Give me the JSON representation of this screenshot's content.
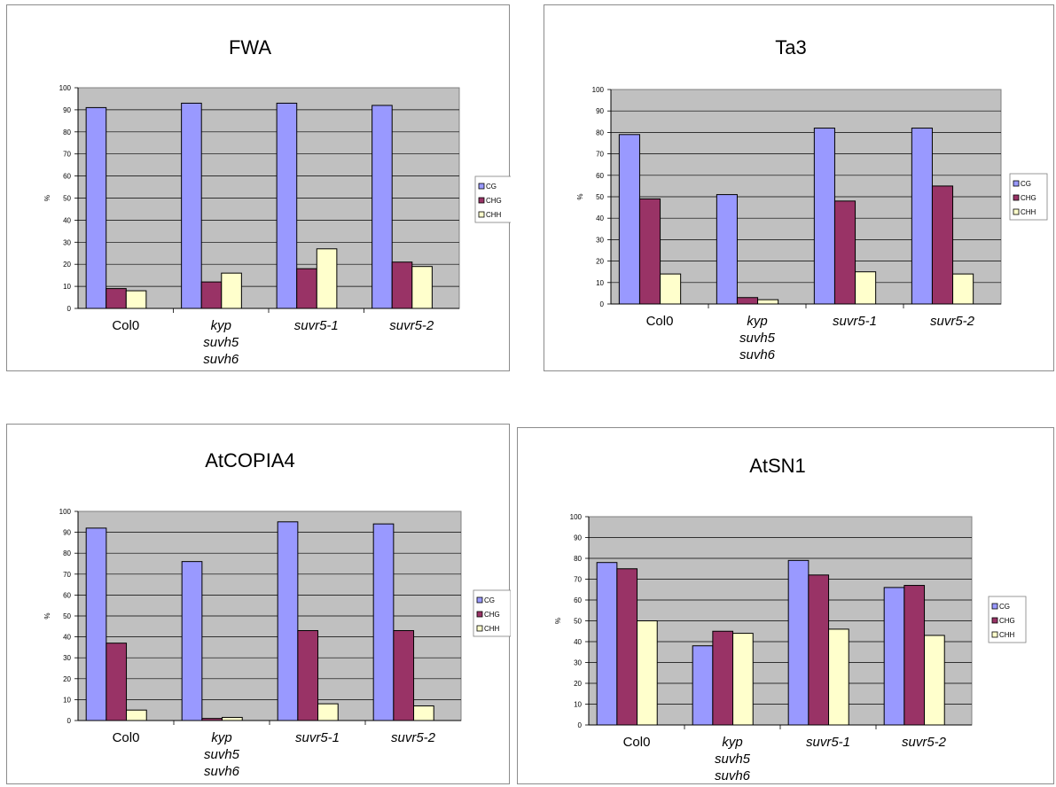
{
  "chart_data": [
    {
      "type": "bar",
      "title": "FWA",
      "ylabel": "%",
      "ylim": [
        0,
        100
      ],
      "yticks": [
        "0",
        "10",
        "20",
        "30",
        "40",
        "50",
        "60",
        "70",
        "80",
        "90",
        "100"
      ],
      "categories": [
        [
          "Col0"
        ],
        [
          "kyp",
          "suvh5",
          "suvh6"
        ],
        [
          "suvr5-1"
        ],
        [
          "suvr5-2"
        ]
      ],
      "category_italic": [
        false,
        true,
        true,
        true
      ],
      "series": [
        {
          "name": "CG",
          "color": "#9999ff",
          "values": [
            91,
            93,
            93,
            92
          ]
        },
        {
          "name": "CHG",
          "color": "#993366",
          "values": [
            9,
            12,
            18,
            21
          ]
        },
        {
          "name": "CHH",
          "color": "#ffffcc",
          "values": [
            8,
            16,
            27,
            19
          ]
        }
      ],
      "grid": true,
      "legend": "right"
    },
    {
      "type": "bar",
      "title": "Ta3",
      "ylabel": "%",
      "ylim": [
        0,
        100
      ],
      "yticks": [
        "0",
        "10",
        "20",
        "30",
        "40",
        "50",
        "60",
        "70",
        "80",
        "90",
        "100"
      ],
      "categories": [
        [
          "Col0"
        ],
        [
          "kyp",
          "suvh5",
          "suvh6"
        ],
        [
          "suvr5-1"
        ],
        [
          "suvr5-2"
        ]
      ],
      "category_italic": [
        false,
        true,
        true,
        true
      ],
      "series": [
        {
          "name": "CG",
          "color": "#9999ff",
          "values": [
            79,
            51,
            82,
            82
          ]
        },
        {
          "name": "CHG",
          "color": "#993366",
          "values": [
            49,
            3,
            48,
            55
          ]
        },
        {
          "name": "CHH",
          "color": "#ffffcc",
          "values": [
            14,
            2,
            15,
            14
          ]
        }
      ],
      "grid": true,
      "legend": "right"
    },
    {
      "type": "bar",
      "title": "AtCOPIA4",
      "ylabel": "%",
      "ylim": [
        0,
        100
      ],
      "yticks": [
        "0",
        "10",
        "20",
        "30",
        "40",
        "50",
        "60",
        "70",
        "80",
        "90",
        "100"
      ],
      "categories": [
        [
          "Col0"
        ],
        [
          "kyp",
          "suvh5",
          "suvh6"
        ],
        [
          "suvr5-1"
        ],
        [
          "suvr5-2"
        ]
      ],
      "category_italic": [
        false,
        true,
        true,
        true
      ],
      "series": [
        {
          "name": "CG",
          "color": "#9999ff",
          "values": [
            92,
            76,
            95,
            94
          ]
        },
        {
          "name": "CHG",
          "color": "#993366",
          "values": [
            37,
            1,
            43,
            43
          ]
        },
        {
          "name": "CHH",
          "color": "#ffffcc",
          "values": [
            5,
            1.5,
            8,
            7
          ]
        }
      ],
      "grid": true,
      "legend": "right"
    },
    {
      "type": "bar",
      "title": "AtSN1",
      "ylabel": "%",
      "ylim": [
        0,
        100
      ],
      "yticks": [
        "0",
        "10",
        "20",
        "30",
        "40",
        "50",
        "60",
        "70",
        "80",
        "90",
        "100"
      ],
      "categories": [
        [
          "Col0"
        ],
        [
          "kyp",
          "suvh5",
          "suvh6"
        ],
        [
          "suvr5-1"
        ],
        [
          "suvr5-2"
        ]
      ],
      "category_italic": [
        false,
        true,
        true,
        true
      ],
      "series": [
        {
          "name": "CG",
          "color": "#9999ff",
          "values": [
            78,
            38,
            79,
            66
          ]
        },
        {
          "name": "CHG",
          "color": "#993366",
          "values": [
            75,
            45,
            72,
            67
          ]
        },
        {
          "name": "CHH",
          "color": "#ffffcc",
          "values": [
            50,
            44,
            46,
            43
          ]
        }
      ],
      "grid": true,
      "legend": "right"
    }
  ]
}
